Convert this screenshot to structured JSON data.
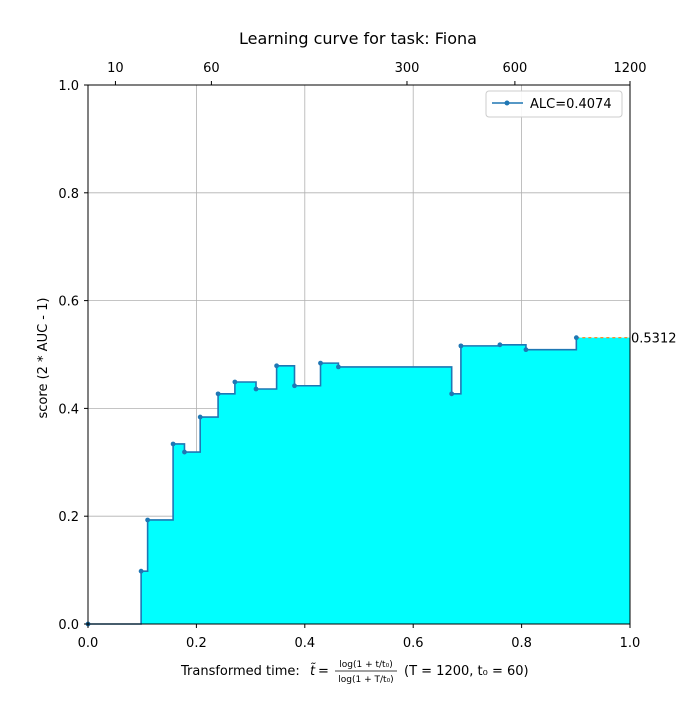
{
  "chart_data": {
    "type": "line",
    "title": "Learning curve for task: Fiona",
    "xlabel": {
      "prefix": "Transformed time: ",
      "t_symbol": "t̃",
      "equals": " = ",
      "numerator": "log(1 + t/t₀)",
      "denominator": "log(1 + T/t₀)",
      "params": "(T = 1200,  t₀ = 60)"
    },
    "ylabel": "score (2 * AUC - 1)",
    "xlim": [
      0.0,
      1.0
    ],
    "ylim": [
      0.0,
      1.0
    ],
    "grid": true,
    "legend_position": "top-right",
    "x_ticks": [
      "0.0",
      "0.2",
      "0.4",
      "0.6",
      "0.8",
      "1.0"
    ],
    "y_ticks": [
      "0.0",
      "0.2",
      "0.4",
      "0.6",
      "0.8",
      "1.0"
    ],
    "top_axis_ticks": {
      "T": 1200,
      "t0": 60,
      "labels": [
        "10",
        "60",
        "300",
        "600",
        "1200"
      ]
    },
    "series": [
      {
        "name": "ALC=0.4074",
        "line_color": "#1f77b4",
        "fill_color": "#00ffff",
        "step": "post",
        "points": [
          {
            "x": 0.0,
            "y": 0.0
          },
          {
            "x": 0.098,
            "y": 0.098
          },
          {
            "x": 0.11,
            "y": 0.193
          },
          {
            "x": 0.157,
            "y": 0.334
          },
          {
            "x": 0.178,
            "y": 0.319
          },
          {
            "x": 0.207,
            "y": 0.384
          },
          {
            "x": 0.24,
            "y": 0.427
          },
          {
            "x": 0.271,
            "y": 0.449
          },
          {
            "x": 0.31,
            "y": 0.436
          },
          {
            "x": 0.348,
            "y": 0.479
          },
          {
            "x": 0.381,
            "y": 0.442
          },
          {
            "x": 0.429,
            "y": 0.484
          },
          {
            "x": 0.462,
            "y": 0.477
          },
          {
            "x": 0.671,
            "y": 0.427
          },
          {
            "x": 0.688,
            "y": 0.516
          },
          {
            "x": 0.76,
            "y": 0.518
          },
          {
            "x": 0.808,
            "y": 0.509
          },
          {
            "x": 0.901,
            "y": 0.5312
          }
        ]
      }
    ],
    "final_value_label": "0.5312",
    "final_value_line_color": "#ff7f0e"
  }
}
